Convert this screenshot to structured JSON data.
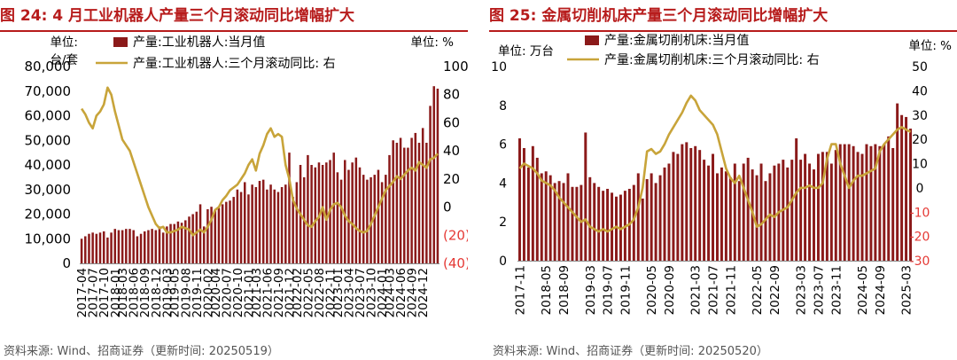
{
  "figures": [
    {
      "title": "图 24:  4 月工业机器人产量三个月滚动同比增幅扩大",
      "source": "资料来源:  Wind、招商证券（更新时间:  20250519）",
      "unit_left_line1": "单位:",
      "unit_left_line2": "台/套",
      "unit_right": "单位:   %",
      "legend_bar": "产量:工业机器人:当月值",
      "legend_line": "产量:工业机器人:三个月滚动同比:  右"
    },
    {
      "title": "图 25:  金属切削机床产量三个月滚动同比增幅扩大",
      "source": "资料来源:  Wind、招商证券（更新时间:  20250520）",
      "unit_left": "单位:   万台",
      "unit_right": "单位:   %",
      "legend_bar": "产量:金属切削机床:当月值",
      "legend_line": "产量:金属切削机床:三个月滚动同比:  右"
    }
  ],
  "chart_data": [
    {
      "type": "bar",
      "title": "4 月工业机器人产量三个月滚动同比增幅扩大",
      "x": [
        "2017-04",
        "2017-05",
        "2017-06",
        "2017-07",
        "2017-08",
        "2017-09",
        "2017-10",
        "2017-11",
        "2017-12",
        "2018-01",
        "2018-02",
        "2018-03",
        "2018-04",
        "2018-05",
        "2018-06",
        "2018-07",
        "2018-08",
        "2018-09",
        "2018-10",
        "2018-11",
        "2018-12",
        "2019-01",
        "2019-02",
        "2019-03",
        "2019-04",
        "2019-05",
        "2019-06",
        "2019-07",
        "2019-08",
        "2019-09",
        "2019-10",
        "2019-11",
        "2019-12",
        "2020-01",
        "2020-02",
        "2020-03",
        "2020-04",
        "2020-05",
        "2020-06",
        "2020-07",
        "2020-08",
        "2020-09",
        "2020-10",
        "2020-11",
        "2020-12",
        "2021-01",
        "2021-02",
        "2021-03",
        "2021-04",
        "2021-05",
        "2021-06",
        "2021-07",
        "2021-08",
        "2021-09",
        "2021-10",
        "2021-11",
        "2021-12",
        "2022-01",
        "2022-02",
        "2022-03",
        "2022-04",
        "2022-05",
        "2022-06",
        "2022-07",
        "2022-08",
        "2022-09",
        "2022-10",
        "2022-11",
        "2022-12",
        "2023-01",
        "2023-02",
        "2023-03",
        "2023-04",
        "2023-05",
        "2023-06",
        "2023-07",
        "2023-08",
        "2023-09",
        "2023-10",
        "2023-11",
        "2023-12",
        "2024-01",
        "2024-02",
        "2024-03",
        "2024-04",
        "2024-05",
        "2024-06",
        "2024-07",
        "2024-08",
        "2024-09",
        "2024-10",
        "2024-11",
        "2024-12",
        "2025-01",
        "2025-02",
        "2025-03",
        "2025-04"
      ],
      "x_tick_labels": [
        "2017-04",
        "2017-07",
        "2017-10",
        "2018-01",
        "2018-03",
        "2018-06",
        "2018-09",
        "2018-12",
        "2019-03",
        "2019-05",
        "2019-08",
        "2019-11",
        "2020-02",
        "2020-04",
        "2020-07",
        "2020-10",
        "2021-01",
        "2021-03",
        "2021-06",
        "2021-09",
        "2021-12",
        "2022-02",
        "2022-05",
        "2022-08",
        "2022-11",
        "2023-01",
        "2023-04",
        "2023-07",
        "2023-10",
        "2024-01",
        "2024-03",
        "2024-06",
        "2024-09",
        "2024-12"
      ],
      "series": [
        {
          "name": "产量:工业机器人:当月值",
          "axis": "left",
          "kind": "bar",
          "values": [
            10000,
            11000,
            12000,
            12500,
            12000,
            12500,
            13000,
            10500,
            12500,
            14000,
            13500,
            13500,
            14000,
            14000,
            13500,
            11000,
            12000,
            13000,
            13500,
            14000,
            13500,
            15000,
            12500,
            15000,
            16000,
            16000,
            17000,
            16500,
            17500,
            19000,
            20000,
            21000,
            24000,
            15000,
            22000,
            23000,
            22000,
            22500,
            24000,
            25000,
            25500,
            27000,
            30000,
            29000,
            33000,
            28000,
            32000,
            31000,
            33500,
            34000,
            30000,
            32000,
            30000,
            29000,
            31000,
            32000,
            45000,
            27000,
            33000,
            40000,
            35000,
            44000,
            40000,
            39000,
            41000,
            40000,
            41000,
            42000,
            45000,
            37000,
            34000,
            42000,
            38000,
            41000,
            43000,
            39000,
            36000,
            34000,
            35000,
            36000,
            38000,
            33000,
            36000,
            44000,
            50000,
            49000,
            51000,
            47000,
            47000,
            51000,
            53000,
            49000,
            55000,
            49000,
            64000,
            72000,
            71000
          ]
        },
        {
          "name": "产量:工业机器人:三个月滚动同比:  右",
          "axis": "right",
          "kind": "line",
          "values": [
            70,
            66,
            60,
            56,
            65,
            68,
            73,
            85,
            80,
            68,
            58,
            48,
            44,
            40,
            32,
            24,
            16,
            8,
            0,
            -6,
            -12,
            -15,
            -14,
            -18,
            -18,
            -17,
            -16,
            -14,
            -15,
            -16,
            -20,
            -18,
            -16,
            -18,
            -14,
            -9,
            -2,
            0,
            5,
            8,
            12,
            14,
            16,
            20,
            24,
            30,
            34,
            26,
            38,
            44,
            52,
            56,
            50,
            52,
            50,
            30,
            20,
            5,
            -1,
            -5,
            -9,
            -13,
            -14,
            -10,
            -7,
            0,
            -9,
            -2,
            2,
            3,
            0,
            -6,
            -10,
            -12,
            -15,
            -17,
            -18,
            -17,
            -12,
            -6,
            0,
            6,
            12,
            15,
            18,
            22,
            20,
            23,
            26,
            28,
            26,
            32,
            30,
            28,
            34,
            35,
            38
          ]
        }
      ],
      "yleft": {
        "min": 0,
        "max": 80000,
        "ticks": [
          0,
          10000,
          20000,
          30000,
          40000,
          50000,
          60000,
          70000,
          80000
        ],
        "tick_labels": [
          "0",
          "10,000",
          "20,000",
          "30,000",
          "40,000",
          "50,000",
          "60,000",
          "70,000",
          "80,000"
        ]
      },
      "yright": {
        "min": -40,
        "max": 100,
        "ticks": [
          -40,
          -20,
          0,
          20,
          40,
          60,
          80,
          100
        ],
        "tick_labels": [
          "(40)",
          "(20)",
          "0",
          "20",
          "40",
          "60",
          "80",
          "100"
        ]
      },
      "colors": {
        "bar": "#8b1a1a",
        "line": "#c8a43a",
        "negative_tick": "#e53935"
      },
      "grid": false,
      "legend_position": "top"
    },
    {
      "type": "bar",
      "title": "金属切削机床产量三个月滚动同比增幅扩大",
      "x": [
        "2017-11",
        "2017-12",
        "2018-01",
        "2018-02",
        "2018-03",
        "2018-04",
        "2018-05",
        "2018-06",
        "2018-07",
        "2018-08",
        "2018-09",
        "2018-10",
        "2018-11",
        "2018-12",
        "2019-01",
        "2019-02",
        "2019-03",
        "2019-04",
        "2019-05",
        "2019-06",
        "2019-07",
        "2019-08",
        "2019-09",
        "2019-10",
        "2019-11",
        "2019-12",
        "2020-01",
        "2020-02",
        "2020-03",
        "2020-04",
        "2020-05",
        "2020-06",
        "2020-07",
        "2020-08",
        "2020-09",
        "2020-10",
        "2020-11",
        "2020-12",
        "2021-01",
        "2021-02",
        "2021-03",
        "2021-04",
        "2021-05",
        "2021-06",
        "2021-07",
        "2021-08",
        "2021-09",
        "2021-10",
        "2021-11",
        "2021-12",
        "2022-01",
        "2022-02",
        "2022-03",
        "2022-04",
        "2022-05",
        "2022-06",
        "2022-07",
        "2022-08",
        "2022-09",
        "2022-10",
        "2022-11",
        "2022-12",
        "2023-01",
        "2023-02",
        "2023-03",
        "2023-04",
        "2023-05",
        "2023-06",
        "2023-07",
        "2023-08",
        "2023-09",
        "2023-10",
        "2023-11",
        "2023-12",
        "2024-01",
        "2024-02",
        "2024-03",
        "2024-04",
        "2024-05",
        "2024-06",
        "2024-07",
        "2024-08",
        "2024-09",
        "2024-10",
        "2024-11",
        "2024-12",
        "2025-01",
        "2025-02",
        "2025-03",
        "2025-04"
      ],
      "x_tick_labels": [
        "2017-11",
        "2018-05",
        "2018-09",
        "2019-03",
        "2019-07",
        "2019-11",
        "2020-05",
        "2020-09",
        "2021-03",
        "2021-07",
        "2021-11",
        "2022-05",
        "2022-09",
        "2023-03",
        "2023-07",
        "2023-11",
        "2024-05",
        "2024-09",
        "2025-03"
      ],
      "series": [
        {
          "name": "产量:金属切削机床:当月值",
          "axis": "left",
          "kind": "bar",
          "values": [
            6.3,
            5.8,
            4.8,
            5.9,
            5.3,
            4.5,
            4.6,
            4.4,
            4.0,
            4.1,
            4.0,
            4.5,
            3.8,
            3.8,
            3.9,
            6.6,
            4.3,
            4.0,
            3.8,
            3.6,
            3.7,
            3.5,
            3.3,
            3.4,
            3.6,
            3.7,
            3.9,
            4.5,
            3.2,
            4.2,
            4.5,
            4.0,
            4.4,
            4.8,
            5.0,
            5.6,
            5.5,
            6.0,
            6.1,
            5.8,
            5.9,
            5.7,
            5.2,
            4.9,
            5.5,
            4.5,
            4.8,
            4.6,
            4.3,
            5.0,
            4.1,
            5.0,
            5.3,
            4.7,
            4.4,
            5.0,
            4.1,
            4.5,
            4.9,
            5.0,
            5.2,
            4.8,
            5.2,
            6.3,
            5.2,
            5.5,
            5.0,
            4.7,
            5.5,
            5.6,
            5.6,
            5.0,
            5.7,
            6.0,
            6.0,
            6.0,
            5.9,
            5.6,
            5.5,
            6.0,
            5.9,
            6.0,
            5.9,
            6.0,
            6.4,
            5.8,
            8.1,
            7.5,
            7.4,
            6.8
          ]
        },
        {
          "name": "产量:金属切削机床:三个月滚动同比:  右",
          "axis": "right",
          "kind": "line",
          "values": [
            8,
            10,
            9,
            8,
            6,
            3,
            2,
            1,
            -1,
            -4,
            -6,
            -8,
            -10,
            -12,
            -14,
            -13,
            -16,
            -17,
            -18,
            -17,
            -18,
            -17,
            -16,
            -17,
            -16,
            -15,
            -13,
            -8,
            0,
            15,
            16,
            14,
            15,
            18,
            22,
            25,
            28,
            31,
            35,
            38,
            36,
            32,
            30,
            28,
            26,
            22,
            15,
            8,
            4,
            2,
            5,
            0,
            -5,
            -10,
            -16,
            -15,
            -13,
            -11,
            -12,
            -10,
            -9,
            -8,
            -5,
            -2,
            0,
            0,
            1,
            0,
            0,
            2,
            12,
            18,
            18,
            10,
            5,
            0,
            3,
            5,
            5,
            6,
            7,
            8,
            15,
            18,
            20,
            22,
            24,
            25,
            24,
            23
          ]
        }
      ],
      "yleft": {
        "min": 0,
        "max": 10,
        "ticks": [
          0,
          2,
          4,
          6,
          8,
          10
        ],
        "tick_labels": [
          "0",
          "2",
          "4",
          "6",
          "8",
          "10"
        ]
      },
      "yright": {
        "min": -30,
        "max": 50,
        "ticks": [
          -30,
          -20,
          -10,
          0,
          10,
          20,
          30,
          40,
          50
        ],
        "tick_labels": [
          "-30",
          "-20",
          "-10",
          "0",
          "10",
          "20",
          "30",
          "40",
          "50"
        ]
      },
      "colors": {
        "bar": "#8b1a1a",
        "line": "#c8a43a",
        "negative_tick": "#e53935"
      },
      "grid": false,
      "legend_position": "top"
    }
  ]
}
